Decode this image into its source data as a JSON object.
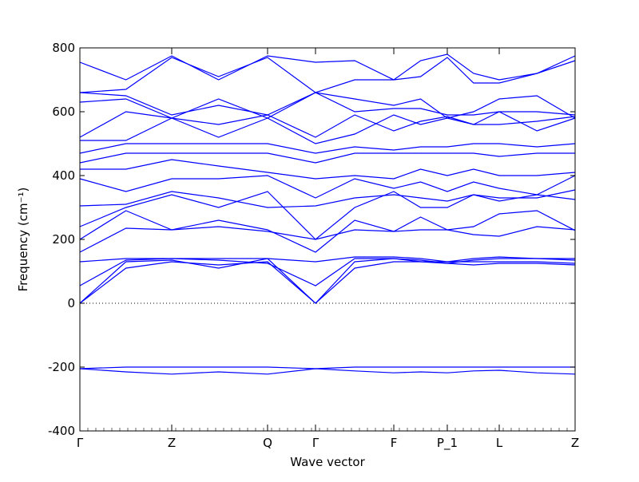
{
  "chart_data": {
    "type": "line",
    "xlabel": "Wave vector",
    "ylabel": "Frequency (cm⁻¹)",
    "x": [
      0,
      0.093,
      0.1855,
      0.28,
      0.379,
      0.4758,
      0.555,
      0.6339,
      0.688,
      0.7419,
      0.795,
      0.8468,
      0.923,
      1.0
    ],
    "xlim": [
      0,
      1
    ],
    "ylim": [
      -400,
      800
    ],
    "xticks": [
      {
        "value": 0,
        "label": "Γ"
      },
      {
        "value": 0.1855,
        "label": "Z"
      },
      {
        "value": 0.379,
        "label": "Q"
      },
      {
        "value": 0.4758,
        "label": "Γ"
      },
      {
        "value": 0.6339,
        "label": "F"
      },
      {
        "value": 0.7419,
        "label": "P_1"
      },
      {
        "value": 0.8468,
        "label": "L"
      },
      {
        "value": 1.0,
        "label": "Z"
      }
    ],
    "yticks": [
      -400,
      -200,
      0,
      200,
      400,
      600,
      800
    ],
    "series": [
      {
        "color": "#0000ff",
        "values": [
          -205,
          -200,
          -200,
          -200,
          -200,
          -205,
          -200,
          -200,
          -200,
          -200,
          -200,
          -200,
          -200,
          -200
        ]
      },
      {
        "color": "#0000ff",
        "values": [
          -205,
          -215,
          -222,
          -215,
          -222,
          -205,
          -212,
          -218,
          -215,
          -218,
          -212,
          -210,
          -218,
          -222
        ]
      },
      {
        "color": "#0000ff",
        "values": [
          0,
          110,
          130,
          120,
          130,
          0,
          110,
          130,
          130,
          125,
          120,
          125,
          125,
          120
        ]
      },
      {
        "color": "#0000ff",
        "values": [
          0,
          130,
          135,
          110,
          140,
          0,
          130,
          140,
          130,
          130,
          130,
          130,
          130,
          125
        ]
      },
      {
        "color": "#0000ff",
        "values": [
          55,
          135,
          140,
          135,
          125,
          55,
          140,
          140,
          135,
          125,
          135,
          140,
          140,
          135
        ]
      },
      {
        "color": "#0000ff",
        "values": [
          130,
          140,
          140,
          140,
          140,
          130,
          145,
          145,
          140,
          130,
          140,
          145,
          140,
          140
        ]
      },
      {
        "color": "#0000ff",
        "values": [
          160,
          235,
          230,
          240,
          225,
          200,
          230,
          225,
          230,
          230,
          215,
          210,
          240,
          230
        ]
      },
      {
        "color": "#0000ff",
        "values": [
          200,
          290,
          230,
          260,
          230,
          160,
          260,
          225,
          270,
          230,
          240,
          280,
          290,
          228
        ]
      },
      {
        "color": "#0000ff",
        "values": [
          240,
          300,
          340,
          300,
          350,
          200,
          300,
          350,
          300,
          300,
          340,
          320,
          340,
          325
        ]
      },
      {
        "color": "#0000ff",
        "values": [
          305,
          310,
          350,
          330,
          300,
          305,
          330,
          340,
          330,
          320,
          340,
          330,
          330,
          355
        ]
      },
      {
        "color": "#0000ff",
        "values": [
          390,
          350,
          390,
          390,
          400,
          330,
          390,
          360,
          380,
          350,
          380,
          360,
          340,
          400
        ]
      },
      {
        "color": "#0000ff",
        "values": [
          420,
          420,
          450,
          430,
          410,
          390,
          400,
          390,
          420,
          400,
          420,
          400,
          400,
          410
        ]
      },
      {
        "color": "#0000ff",
        "values": [
          440,
          470,
          470,
          470,
          470,
          440,
          470,
          470,
          470,
          470,
          470,
          460,
          470,
          470
        ]
      },
      {
        "color": "#0000ff",
        "values": [
          470,
          500,
          500,
          500,
          500,
          470,
          490,
          480,
          490,
          490,
          500,
          500,
          490,
          500
        ]
      },
      {
        "color": "#0000ff",
        "values": [
          510,
          510,
          580,
          520,
          580,
          500,
          530,
          590,
          560,
          580,
          560,
          600,
          540,
          580
        ]
      },
      {
        "color": "#0000ff",
        "values": [
          520,
          600,
          580,
          560,
          590,
          520,
          590,
          540,
          570,
          585,
          560,
          560,
          570,
          585
        ]
      },
      {
        "color": "#0000ff",
        "values": [
          630,
          640,
          580,
          640,
          580,
          660,
          600,
          610,
          610,
          590,
          590,
          600,
          600,
          590
        ]
      },
      {
        "color": "#0000ff",
        "values": [
          660,
          650,
          590,
          620,
          590,
          660,
          640,
          620,
          640,
          580,
          600,
          640,
          650,
          580
        ]
      },
      {
        "color": "#0000ff",
        "values": [
          755,
          700,
          775,
          700,
          775,
          755,
          760,
          700,
          760,
          780,
          720,
          700,
          720,
          760
        ]
      },
      {
        "color": "#0000ff",
        "values": [
          660,
          670,
          770,
          710,
          770,
          660,
          700,
          700,
          710,
          770,
          690,
          690,
          720,
          775
        ]
      }
    ]
  }
}
